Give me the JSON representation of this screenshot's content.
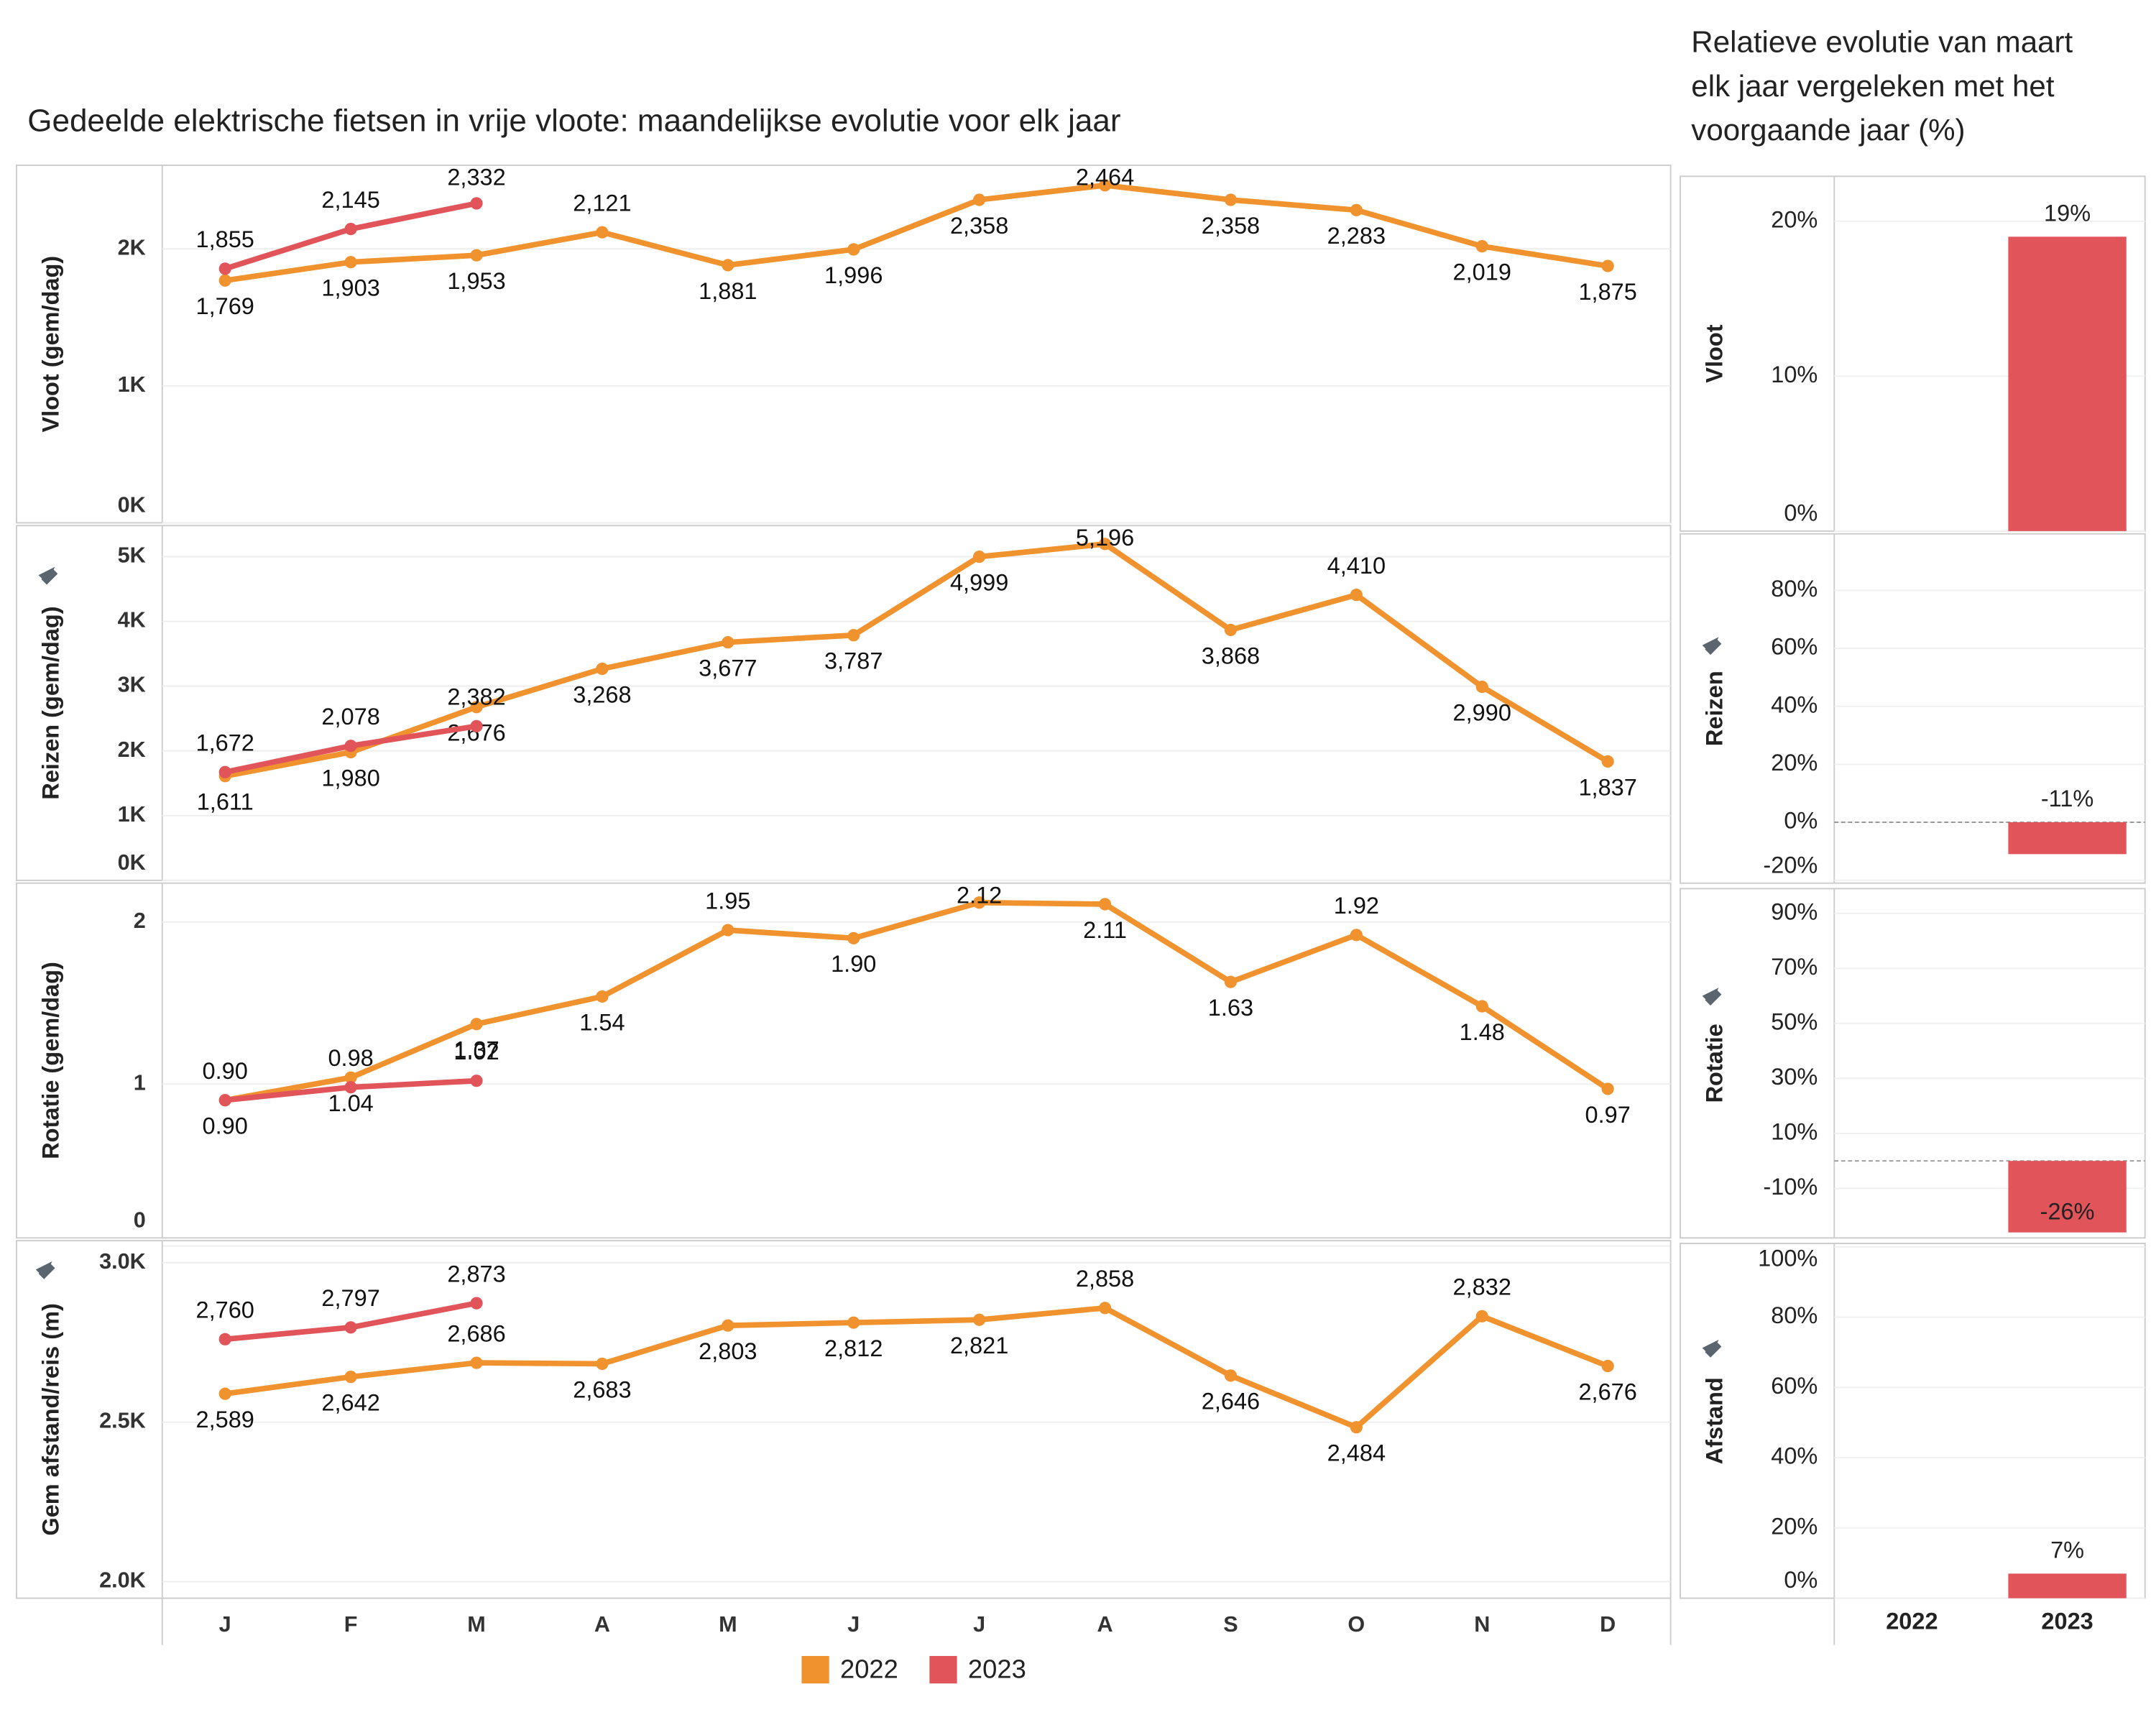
{
  "title": "Gedeelde elektrische fietsen in vrije vloote: maandelijkse evolutie voor elk jaar",
  "side_title": [
    "Relatieve evolutie van maart",
    "elk jaar vergeleken met het",
    "voorgaande jaar (%)"
  ],
  "chart_data": [
    {
      "type": "line",
      "y_label": "Vloot (gem/dag)",
      "ylim": [
        0,
        2610
      ],
      "yticks": [
        {
          "value": 0,
          "label": "0K"
        },
        {
          "value": 1000,
          "label": "1K"
        },
        {
          "value": 2000,
          "label": "2K"
        }
      ],
      "series": [
        {
          "name": "2022",
          "color": "#f0922d",
          "values": [
            1769,
            1903,
            1953,
            2121,
            1881,
            1996,
            2358,
            2464,
            2358,
            2283,
            2019,
            1875
          ],
          "value_labels": [
            "1,769",
            "1,903",
            "1,953",
            "2,121",
            "1,881",
            "1,996",
            "2,358",
            "2,464",
            "2,358",
            "2,283",
            "2,019",
            "1,875"
          ]
        },
        {
          "name": "2023",
          "color": "#e0545a",
          "values": [
            1855,
            2145,
            2332,
            null,
            null,
            null,
            null,
            null,
            null,
            null,
            null,
            null
          ],
          "value_labels": [
            "1,855",
            "2,145",
            "2,332",
            null,
            null,
            null,
            null,
            null,
            null,
            null,
            null,
            null
          ]
        }
      ]
    },
    {
      "type": "line",
      "y_label": "Reizen (gem/dag)",
      "ylim": [
        0,
        5480
      ],
      "yticks": [
        {
          "value": 0,
          "label": "0K"
        },
        {
          "value": 1000,
          "label": "1K"
        },
        {
          "value": 2000,
          "label": "2K"
        },
        {
          "value": 3000,
          "label": "3K"
        },
        {
          "value": 4000,
          "label": "4K"
        },
        {
          "value": 5000,
          "label": "5K"
        }
      ],
      "series": [
        {
          "name": "2022",
          "color": "#f0922d",
          "values": [
            1611,
            1980,
            2676,
            3268,
            3677,
            3787,
            4999,
            5196,
            3868,
            4410,
            2990,
            1837
          ],
          "value_labels": [
            "1,611",
            "1,980",
            "2,676",
            "3,268",
            "3,677",
            "3,787",
            "4,999",
            "5,196",
            "3,868",
            "4,410",
            "2,990",
            "1,837"
          ]
        },
        {
          "name": "2023",
          "color": "#e0545a",
          "values": [
            1672,
            2078,
            2382,
            null,
            null,
            null,
            null,
            null,
            null,
            null,
            null,
            null
          ],
          "value_labels": [
            "1,672",
            "2,078",
            "2,382",
            null,
            null,
            null,
            null,
            null,
            null,
            null,
            null,
            null
          ]
        }
      ]
    },
    {
      "type": "line",
      "y_label": "Rotatie (gem/dag)",
      "ylim": [
        0.05,
        2.24
      ],
      "yticks": [
        0,
        1,
        2
      ],
      "series": [
        {
          "name": "2022",
          "color": "#f0922d",
          "values": [
            0.9,
            1.04,
            1.37,
            1.54,
            1.95,
            1.9,
            2.12,
            2.11,
            1.63,
            1.92,
            1.48,
            0.97
          ],
          "value_labels": [
            "0.90",
            "1.04",
            "1.37",
            "1.54",
            "1.95",
            "1.90",
            "2.12",
            "2.11",
            "1.63",
            "1.92",
            "1.48",
            "0.97"
          ]
        },
        {
          "name": "2023",
          "color": "#e0545a",
          "values": [
            0.9,
            0.98,
            1.02,
            null,
            null,
            null,
            null,
            null,
            null,
            null,
            null,
            null
          ],
          "value_labels": [
            "0.90",
            "0.98",
            "1.02",
            null,
            null,
            null,
            null,
            null,
            null,
            null,
            null,
            null
          ]
        }
      ]
    },
    {
      "type": "line",
      "y_label": "Gem afstand/reis (m)",
      "ylim": [
        1948,
        3069
      ],
      "categories": [
        "J",
        "F",
        "M",
        "A",
        "M",
        "J",
        "J",
        "A",
        "S",
        "O",
        "N",
        "D"
      ],
      "yticks": [
        {
          "value": 2000,
          "label": "2.0K"
        },
        {
          "value": 2500,
          "label": "2.5K"
        },
        {
          "value": 3000,
          "label": "3.0K"
        }
      ],
      "series": [
        {
          "name": "2022",
          "color": "#f0922d",
          "values": [
            2589,
            2642,
            2686,
            2683,
            2803,
            2812,
            2821,
            2858,
            2646,
            2484,
            2832,
            2676
          ],
          "value_labels": [
            "2,589",
            "2,642",
            "2,686",
            "2,683",
            "2,803",
            "2,812",
            "2,821",
            "2,858",
            "2,646",
            "2,484",
            "2,832",
            "2,676"
          ]
        },
        {
          "name": "2023",
          "color": "#e0545a",
          "values": [
            2760,
            2797,
            2873,
            null,
            null,
            null,
            null,
            null,
            null,
            null,
            null,
            null
          ],
          "value_labels": [
            "2,760",
            "2,797",
            "2,873",
            null,
            null,
            null,
            null,
            null,
            null,
            null,
            null,
            null
          ]
        }
      ]
    },
    {
      "type": "bar",
      "y_label": "Vloot",
      "color": "#e0545a",
      "values": [
        null,
        19
      ],
      "value_labels": [
        null,
        "19%"
      ],
      "ylim": [
        0,
        22.9
      ],
      "yticks": [
        {
          "value": 0,
          "label": "0%"
        },
        {
          "value": 10,
          "label": "10%"
        },
        {
          "value": 20,
          "label": "20%"
        }
      ]
    },
    {
      "type": "bar",
      "y_label": "Reizen",
      "color": "#e0545a",
      "values": [
        null,
        -11
      ],
      "value_labels": [
        null,
        "-11%"
      ],
      "ylim": [
        -21,
        99.5
      ],
      "yticks": [
        {
          "value": -20,
          "label": "-20%"
        },
        {
          "value": 0,
          "label": "0%"
        },
        {
          "value": 20,
          "label": "20%"
        },
        {
          "value": 40,
          "label": "40%"
        },
        {
          "value": 60,
          "label": "60%"
        },
        {
          "value": 80,
          "label": "80%"
        }
      ]
    },
    {
      "type": "bar",
      "y_label": "Rotatie",
      "color": "#e0545a",
      "values": [
        null,
        -26
      ],
      "value_labels": [
        null,
        "-26%"
      ],
      "ylim": [
        -28,
        99
      ],
      "yticks": [
        {
          "value": -10,
          "label": "-10%"
        },
        {
          "value": 10,
          "label": "10%"
        },
        {
          "value": 30,
          "label": "30%"
        },
        {
          "value": 50,
          "label": "50%"
        },
        {
          "value": 70,
          "label": "70%"
        },
        {
          "value": 90,
          "label": "90%"
        }
      ]
    },
    {
      "type": "bar",
      "y_label": "Afstand",
      "color": "#e0545a",
      "values": [
        null,
        7
      ],
      "value_labels": [
        null,
        "7%"
      ],
      "ylim": [
        0,
        101
      ],
      "categories": [
        "2022",
        "2023"
      ],
      "yticks": [
        {
          "value": 0,
          "label": "0%"
        },
        {
          "value": 20,
          "label": "20%"
        },
        {
          "value": 40,
          "label": "40%"
        },
        {
          "value": 60,
          "label": "60%"
        },
        {
          "value": 80,
          "label": "80%"
        },
        {
          "value": 100,
          "label": "100%"
        }
      ]
    }
  ]
}
